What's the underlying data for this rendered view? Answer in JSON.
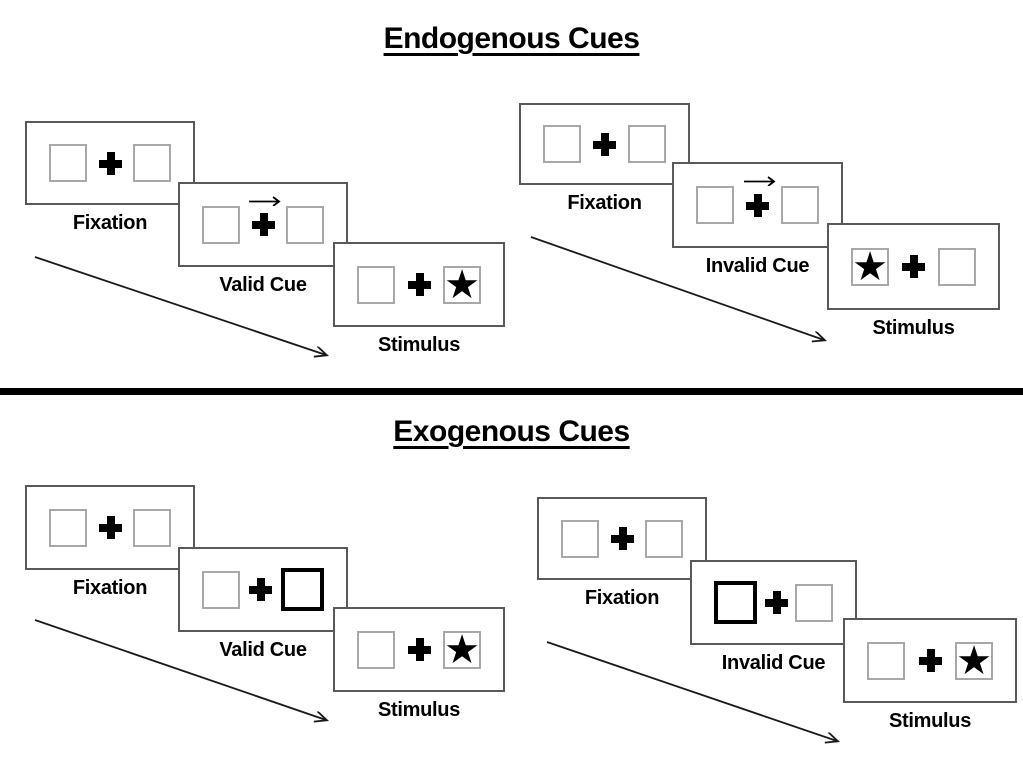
{
  "colors": {
    "ink": "#000000",
    "panel_border": "#595959",
    "placeholder_box_border": "#a8a8a8",
    "highlight_box_border": "#000000",
    "divider": "#000000",
    "background": "#ffffff"
  },
  "glyphs": {
    "star": "★",
    "cue_arrow_direction": "right"
  },
  "sections": [
    {
      "title": "Endogenous Cues",
      "groups": [
        {
          "name": "endogenous-valid",
          "slot": "tl",
          "panels": [
            {
              "type": "fixation",
              "label": "Fixation",
              "left_box": "empty",
              "right_box": "empty",
              "cue_arrow": false
            },
            {
              "type": "cue",
              "label": "Valid Cue",
              "left_box": "empty",
              "right_box": "empty",
              "cue_arrow": true
            },
            {
              "type": "stimulus",
              "label": "Stimulus",
              "left_box": "empty",
              "right_box": "star",
              "cue_arrow": false
            }
          ]
        },
        {
          "name": "endogenous-invalid",
          "slot": "tr",
          "panels": [
            {
              "type": "fixation",
              "label": "Fixation",
              "left_box": "empty",
              "right_box": "empty",
              "cue_arrow": false
            },
            {
              "type": "cue",
              "label": "Invalid Cue",
              "left_box": "empty",
              "right_box": "empty",
              "cue_arrow": true
            },
            {
              "type": "stimulus",
              "label": "Stimulus",
              "left_box": "star",
              "right_box": "empty",
              "cue_arrow": false
            }
          ]
        }
      ]
    },
    {
      "title": "Exogenous Cues",
      "groups": [
        {
          "name": "exogenous-valid",
          "slot": "bl",
          "panels": [
            {
              "type": "fixation",
              "label": "Fixation",
              "left_box": "empty",
              "right_box": "empty",
              "cue_arrow": false
            },
            {
              "type": "cue",
              "label": "Valid Cue",
              "left_box": "empty",
              "right_box": "highlight",
              "cue_arrow": false
            },
            {
              "type": "stimulus",
              "label": "Stimulus",
              "left_box": "empty",
              "right_box": "star",
              "cue_arrow": false
            }
          ]
        },
        {
          "name": "exogenous-invalid",
          "slot": "br",
          "panels": [
            {
              "type": "fixation",
              "label": "Fixation",
              "left_box": "empty",
              "right_box": "empty",
              "cue_arrow": false
            },
            {
              "type": "cue",
              "label": "Invalid Cue",
              "left_box": "highlight",
              "right_box": "empty",
              "cue_arrow": false
            },
            {
              "type": "stimulus",
              "label": "Stimulus",
              "left_box": "empty",
              "right_box": "star",
              "cue_arrow": false
            }
          ]
        }
      ]
    }
  ]
}
